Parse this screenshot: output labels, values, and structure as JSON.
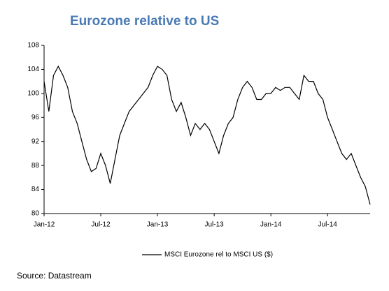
{
  "chart_data": {
    "type": "line",
    "title": "Eurozone relative to US",
    "source": "Source: Datastream",
    "categories": [
      "Jan-12",
      null,
      null,
      null,
      null,
      null,
      null,
      null,
      null,
      null,
      null,
      null,
      "Jul-12",
      null,
      null,
      null,
      null,
      null,
      null,
      null,
      null,
      null,
      null,
      null,
      "Jan-13",
      null,
      null,
      null,
      null,
      null,
      null,
      null,
      null,
      null,
      null,
      null,
      "Jul-13",
      null,
      null,
      null,
      null,
      null,
      null,
      null,
      null,
      null,
      null,
      null,
      "Jan-14",
      null,
      null,
      null,
      null,
      null,
      null,
      null,
      null,
      null,
      null,
      null,
      "Jul-14",
      null,
      null,
      null,
      null,
      null,
      null,
      null,
      null,
      null
    ],
    "series": [
      {
        "name": "MSCI Eurozone rel to MSCI US ($)",
        "color": "#000000",
        "values": [
          102,
          97,
          103,
          104.5,
          103,
          101,
          97,
          95,
          92,
          89,
          87,
          87.5,
          90,
          88,
          85,
          89,
          93,
          95,
          97,
          98,
          99,
          100,
          101,
          103,
          104.5,
          104,
          103,
          99,
          97,
          98.5,
          96,
          93,
          95,
          94,
          95,
          94,
          92,
          90,
          93,
          95,
          96,
          99,
          101,
          102,
          101,
          99,
          99,
          100,
          100,
          101,
          100.5,
          101,
          101,
          100,
          99,
          103,
          102,
          102,
          100,
          99,
          96,
          94,
          92,
          90,
          89,
          90,
          88,
          86,
          84.5,
          81.5
        ]
      }
    ],
    "ylim": [
      80,
      108
    ],
    "yticks": [
      80,
      84,
      88,
      92,
      96,
      100,
      104,
      108
    ]
  }
}
